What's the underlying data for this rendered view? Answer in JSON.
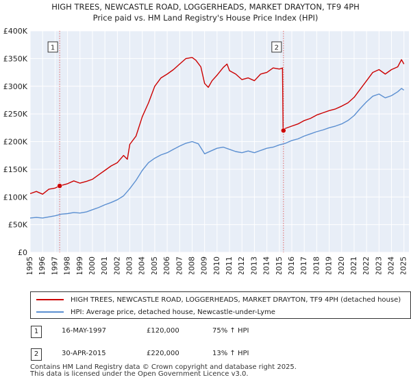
{
  "chart_data": {
    "type": "line",
    "title": "HIGH TREES, NEWCASTLE ROAD, LOGGERHEADS, MARKET DRAYTON, TF9 4PH",
    "subtitle": "Price paid vs. HM Land Registry's House Price Index (HPI)",
    "xlim": [
      1995,
      2025.4
    ],
    "ylim": [
      0,
      400000
    ],
    "x_ticks": [
      "1995",
      "1996",
      "1997",
      "1998",
      "1999",
      "2000",
      "2001",
      "2002",
      "2003",
      "2004",
      "2005",
      "2006",
      "2007",
      "2008",
      "2009",
      "2010",
      "2011",
      "2012",
      "2013",
      "2014",
      "2015",
      "2016",
      "2017",
      "2018",
      "2019",
      "2020",
      "2021",
      "2022",
      "2023",
      "2024",
      "2025"
    ],
    "y_ticks": [
      {
        "value": 0,
        "label": "£0"
      },
      {
        "value": 50000,
        "label": "£50K"
      },
      {
        "value": 100000,
        "label": "£100K"
      },
      {
        "value": 150000,
        "label": "£150K"
      },
      {
        "value": 200000,
        "label": "£200K"
      },
      {
        "value": 250000,
        "label": "£250K"
      },
      {
        "value": 300000,
        "label": "£300K"
      },
      {
        "value": 350000,
        "label": "£350K"
      },
      {
        "value": 400000,
        "label": "£400K"
      }
    ],
    "series": [
      {
        "name": "HIGH TREES, NEWCASTLE ROAD, LOGGERHEADS, MARKET DRAYTON, TF9 4PH (detached house)",
        "color": "#cc0000",
        "points": [
          [
            1995.0,
            106000
          ],
          [
            1995.5,
            110000
          ],
          [
            1996.0,
            105000
          ],
          [
            1996.5,
            114000
          ],
          [
            1997.0,
            116000
          ],
          [
            1997.37,
            120000
          ],
          [
            1998.0,
            124000
          ],
          [
            1998.5,
            129000
          ],
          [
            1999.0,
            125000
          ],
          [
            1999.5,
            128000
          ],
          [
            2000.0,
            132000
          ],
          [
            2000.5,
            140000
          ],
          [
            2001.0,
            148000
          ],
          [
            2001.5,
            156000
          ],
          [
            2002.0,
            162000
          ],
          [
            2002.5,
            175000
          ],
          [
            2002.8,
            168000
          ],
          [
            2003.0,
            195000
          ],
          [
            2003.5,
            210000
          ],
          [
            2004.0,
            245000
          ],
          [
            2004.5,
            270000
          ],
          [
            2005.0,
            300000
          ],
          [
            2005.5,
            315000
          ],
          [
            2006.0,
            322000
          ],
          [
            2006.5,
            330000
          ],
          [
            2007.0,
            340000
          ],
          [
            2007.5,
            350000
          ],
          [
            2008.0,
            352000
          ],
          [
            2008.3,
            347000
          ],
          [
            2008.7,
            335000
          ],
          [
            2009.0,
            305000
          ],
          [
            2009.3,
            298000
          ],
          [
            2009.6,
            310000
          ],
          [
            2010.0,
            320000
          ],
          [
            2010.5,
            334000
          ],
          [
            2010.8,
            340000
          ],
          [
            2011.0,
            328000
          ],
          [
            2011.5,
            322000
          ],
          [
            2012.0,
            312000
          ],
          [
            2012.5,
            315000
          ],
          [
            2013.0,
            310000
          ],
          [
            2013.5,
            322000
          ],
          [
            2014.0,
            325000
          ],
          [
            2014.5,
            333000
          ],
          [
            2015.0,
            331000
          ],
          [
            2015.25,
            333000
          ],
          [
            2015.3,
            220000
          ],
          [
            2015.5,
            224000
          ],
          [
            2016.0,
            228000
          ],
          [
            2016.5,
            232000
          ],
          [
            2017.0,
            238000
          ],
          [
            2017.5,
            242000
          ],
          [
            2018.0,
            248000
          ],
          [
            2018.5,
            252000
          ],
          [
            2019.0,
            256000
          ],
          [
            2019.5,
            259000
          ],
          [
            2020.0,
            264000
          ],
          [
            2020.5,
            270000
          ],
          [
            2021.0,
            280000
          ],
          [
            2021.5,
            295000
          ],
          [
            2022.0,
            310000
          ],
          [
            2022.5,
            325000
          ],
          [
            2023.0,
            330000
          ],
          [
            2023.5,
            322000
          ],
          [
            2024.0,
            330000
          ],
          [
            2024.5,
            335000
          ],
          [
            2024.8,
            348000
          ],
          [
            2025.0,
            340000
          ]
        ]
      },
      {
        "name": "HPI: Average price, detached house, Newcastle-under-Lyme",
        "color": "#5b8fd1",
        "points": [
          [
            1995.0,
            62000
          ],
          [
            1995.5,
            63000
          ],
          [
            1996.0,
            62000
          ],
          [
            1996.5,
            64000
          ],
          [
            1997.0,
            66000
          ],
          [
            1997.5,
            69000
          ],
          [
            1998.0,
            70000
          ],
          [
            1998.5,
            72000
          ],
          [
            1999.0,
            71000
          ],
          [
            1999.5,
            73000
          ],
          [
            2000.0,
            77000
          ],
          [
            2000.5,
            81000
          ],
          [
            2001.0,
            86000
          ],
          [
            2001.5,
            90000
          ],
          [
            2002.0,
            95000
          ],
          [
            2002.5,
            102000
          ],
          [
            2003.0,
            115000
          ],
          [
            2003.5,
            130000
          ],
          [
            2004.0,
            148000
          ],
          [
            2004.5,
            162000
          ],
          [
            2005.0,
            170000
          ],
          [
            2005.5,
            176000
          ],
          [
            2006.0,
            180000
          ],
          [
            2006.5,
            186000
          ],
          [
            2007.0,
            192000
          ],
          [
            2007.5,
            197000
          ],
          [
            2008.0,
            200000
          ],
          [
            2008.5,
            196000
          ],
          [
            2009.0,
            178000
          ],
          [
            2009.5,
            183000
          ],
          [
            2010.0,
            188000
          ],
          [
            2010.5,
            190000
          ],
          [
            2011.0,
            186000
          ],
          [
            2011.5,
            182000
          ],
          [
            2012.0,
            180000
          ],
          [
            2012.5,
            183000
          ],
          [
            2013.0,
            180000
          ],
          [
            2013.5,
            184000
          ],
          [
            2014.0,
            188000
          ],
          [
            2014.5,
            190000
          ],
          [
            2015.0,
            194000
          ],
          [
            2015.5,
            197000
          ],
          [
            2016.0,
            202000
          ],
          [
            2016.5,
            205000
          ],
          [
            2017.0,
            210000
          ],
          [
            2017.5,
            214000
          ],
          [
            2018.0,
            218000
          ],
          [
            2018.5,
            221000
          ],
          [
            2019.0,
            225000
          ],
          [
            2019.5,
            228000
          ],
          [
            2020.0,
            232000
          ],
          [
            2020.5,
            238000
          ],
          [
            2021.0,
            247000
          ],
          [
            2021.5,
            260000
          ],
          [
            2022.0,
            272000
          ],
          [
            2022.5,
            282000
          ],
          [
            2023.0,
            286000
          ],
          [
            2023.5,
            279000
          ],
          [
            2024.0,
            283000
          ],
          [
            2024.5,
            290000
          ],
          [
            2024.8,
            296000
          ],
          [
            2025.0,
            293000
          ]
        ]
      }
    ],
    "transactions": [
      {
        "label": "1",
        "x": 1997.37,
        "y": 120000
      },
      {
        "label": "2",
        "x": 2015.33,
        "y": 220000
      }
    ]
  },
  "legend": {
    "property_label": "HIGH TREES, NEWCASTLE ROAD, LOGGERHEADS, MARKET DRAYTON, TF9 4PH (detached house)",
    "hpi_label": "HPI: Average price, detached house, Newcastle-under-Lyme"
  },
  "transactions_table": [
    {
      "num": "1",
      "date": "16-MAY-1997",
      "price": "£120,000",
      "hpi": "75% ↑ HPI"
    },
    {
      "num": "2",
      "date": "30-APR-2015",
      "price": "£220,000",
      "hpi": "13% ↑ HPI"
    }
  ],
  "footer": {
    "line1": "Contains HM Land Registry data © Crown copyright and database right 2025.",
    "line2": "This data is licensed under the Open Government Licence v3.0."
  },
  "colors": {
    "property": "#cc0000",
    "hpi": "#5b8fd1",
    "plot_bg": "#e8eef7",
    "grid": "#ffffff"
  }
}
